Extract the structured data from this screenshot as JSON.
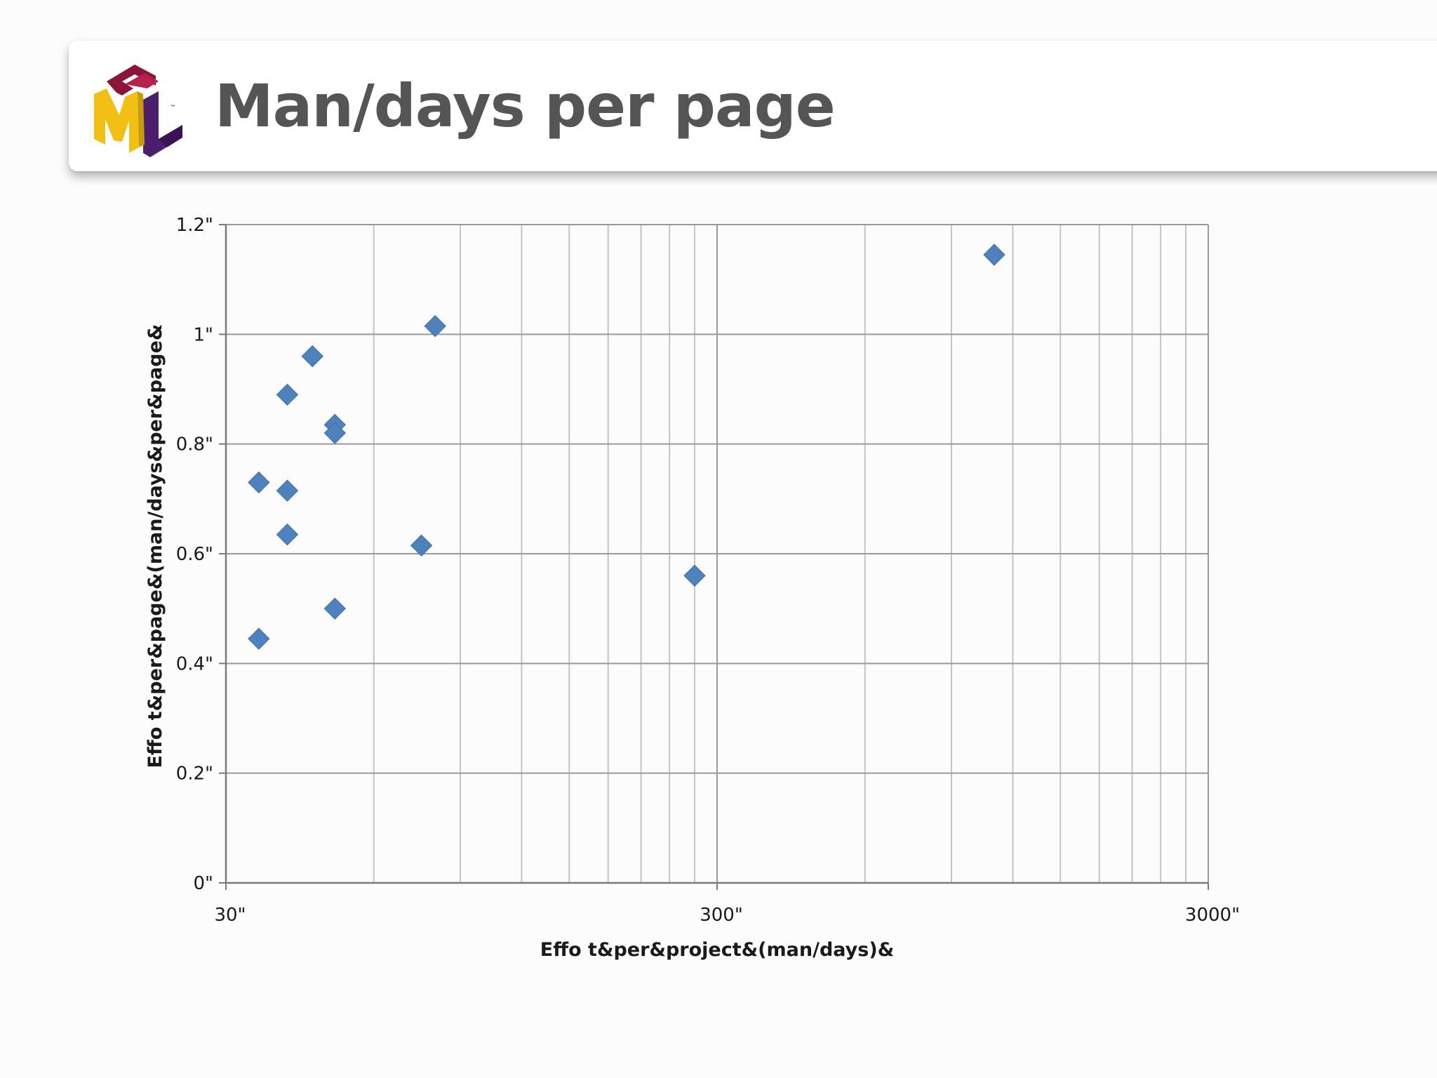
{
  "slide": {
    "title": "Man/days per page",
    "logo": {
      "name": "ifml-logo",
      "letters": [
        "I",
        "F",
        "M",
        "L"
      ],
      "trademark": "™"
    }
  },
  "chart_data": {
    "type": "scatter",
    "title": "",
    "xlabel": "Effo t&per&project&(man/days)&",
    "ylabel": "Effo t&per&page&(man/days&per&page&",
    "x_scale": "log",
    "xlim": [
      30,
      3000
    ],
    "ylim": [
      0,
      1.2
    ],
    "x_ticks": [
      "30\"",
      "300\"",
      "3000\""
    ],
    "y_ticks": [
      "0\"",
      "0.2\"",
      "0.4\"",
      "0.6\"",
      "0.8\"",
      "1\"",
      "1.2\""
    ],
    "grid": true,
    "legend": "none",
    "marker": "diamond",
    "color": "#4f81bd",
    "series": [
      {
        "points": [
          {
            "x": 35,
            "y": 0.73
          },
          {
            "x": 35,
            "y": 0.445
          },
          {
            "x": 40,
            "y": 0.89
          },
          {
            "x": 40,
            "y": 0.715
          },
          {
            "x": 40,
            "y": 0.635
          },
          {
            "x": 45,
            "y": 0.96
          },
          {
            "x": 50,
            "y": 0.835
          },
          {
            "x": 50,
            "y": 0.82
          },
          {
            "x": 50,
            "y": 0.5
          },
          {
            "x": 75,
            "y": 0.615
          },
          {
            "x": 80,
            "y": 1.015
          },
          {
            "x": 270,
            "y": 0.56
          },
          {
            "x": 1100,
            "y": 1.145
          }
        ]
      }
    ]
  }
}
